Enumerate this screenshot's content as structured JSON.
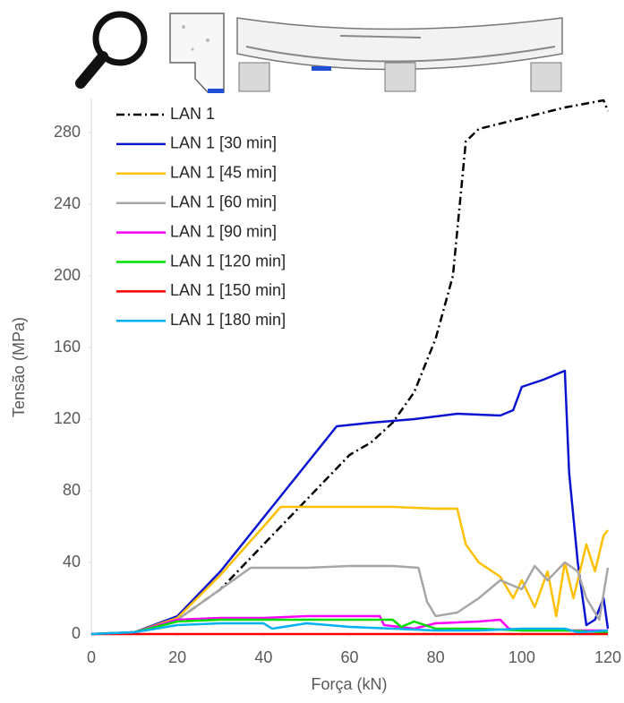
{
  "chart_data": {
    "type": "line",
    "x_label": "Força (kN)",
    "y_label": "Tensão (MPa)",
    "xlim": [
      0,
      120
    ],
    "xticks": [
      0,
      20,
      40,
      60,
      80,
      100,
      120
    ],
    "ylim": [
      0,
      300
    ],
    "yticks": [
      0,
      40,
      80,
      120,
      160,
      200,
      240,
      280
    ],
    "legend": "upper-left",
    "series": [
      {
        "name": "LAN 1",
        "color": "#000000",
        "dash": "dash-dot",
        "x": [
          0,
          10,
          20,
          30,
          40,
          50,
          60,
          65,
          70,
          75,
          80,
          84,
          86,
          87,
          90,
          100,
          110,
          119,
          120
        ],
        "values": [
          0,
          1,
          8,
          25,
          50,
          75,
          100,
          107,
          118,
          135,
          165,
          200,
          250,
          275,
          282,
          288,
          294,
          298,
          292
        ]
      },
      {
        "name": "LAN 1 [30 min]",
        "color": "#0a14d0",
        "x": [
          0,
          10,
          20,
          30,
          40,
          45,
          50,
          57,
          65,
          75,
          85,
          95,
          98,
          100,
          105,
          108,
          110,
          111,
          113,
          115,
          117,
          119,
          120
        ],
        "values": [
          0,
          1,
          10,
          35,
          65,
          80,
          95,
          116,
          118,
          120,
          123,
          122,
          125,
          138,
          142,
          145,
          147,
          90,
          40,
          5,
          8,
          20,
          3
        ]
      },
      {
        "name": "LAN 1 [45 min]",
        "color": "#ffc000",
        "x": [
          0,
          10,
          20,
          30,
          40,
          44,
          55,
          70,
          80,
          85,
          87,
          90,
          95,
          98,
          100,
          103,
          106,
          108,
          110,
          112,
          115,
          117,
          119,
          120
        ],
        "values": [
          0,
          1,
          9,
          33,
          60,
          71,
          71,
          71,
          70,
          70,
          50,
          40,
          32,
          20,
          30,
          15,
          35,
          10,
          40,
          20,
          50,
          35,
          55,
          58
        ]
      },
      {
        "name": "LAN 1 [60 min]",
        "color": "#a6a6a6",
        "x": [
          0,
          10,
          20,
          30,
          37,
          50,
          60,
          70,
          76,
          78,
          80,
          85,
          90,
          95,
          100,
          103,
          106,
          110,
          113,
          115,
          118,
          120
        ],
        "values": [
          0,
          1,
          8,
          25,
          37,
          37,
          38,
          38,
          37,
          18,
          10,
          12,
          20,
          30,
          25,
          38,
          30,
          40,
          35,
          20,
          8,
          37
        ]
      },
      {
        "name": "LAN 1 [90 min]",
        "color": "#ff00ff",
        "x": [
          0,
          10,
          20,
          30,
          40,
          50,
          60,
          67,
          68,
          75,
          80,
          90,
          95,
          97,
          100,
          110,
          120
        ],
        "values": [
          0,
          1,
          8,
          9,
          9,
          10,
          10,
          10,
          5,
          3,
          6,
          7,
          8,
          3,
          2,
          2,
          2
        ]
      },
      {
        "name": "LAN 1 [120 min]",
        "color": "#00e000",
        "x": [
          0,
          10,
          20,
          30,
          40,
          50,
          60,
          70,
          72,
          75,
          80,
          90,
          100,
          110,
          120
        ],
        "values": [
          0,
          1,
          7,
          8,
          8,
          8,
          8,
          8,
          4,
          7,
          3,
          3,
          2,
          2,
          1
        ]
      },
      {
        "name": "LAN 1 [150 min]",
        "color": "#ff0000",
        "x": [
          0,
          120
        ],
        "values": [
          0,
          0
        ]
      },
      {
        "name": "LAN 1 [180 min]",
        "color": "#00b0f0",
        "x": [
          0,
          10,
          20,
          30,
          40,
          42,
          50,
          60,
          70,
          80,
          90,
          100,
          110,
          113,
          120
        ],
        "values": [
          0,
          1,
          5,
          6,
          6,
          3,
          6,
          4,
          3,
          2,
          2,
          3,
          3,
          1,
          2
        ]
      }
    ]
  }
}
